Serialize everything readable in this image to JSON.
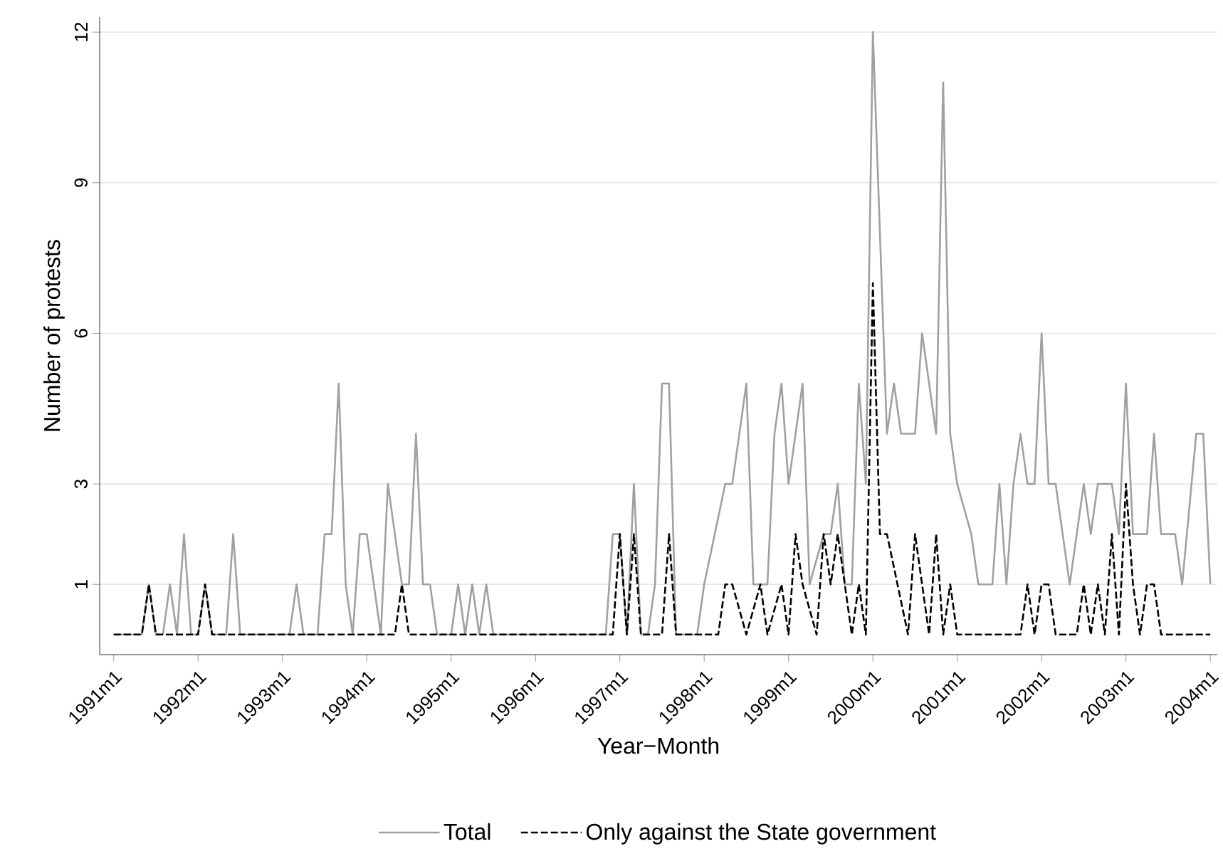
{
  "chart_data": {
    "type": "line",
    "xlabel": "Year−Month",
    "ylabel": "Number of protests",
    "xlim": [
      "1990-11",
      "2004-02"
    ],
    "ylim": [
      -0.4,
      12.3
    ],
    "xticks": [
      {
        "value": "1991-01",
        "label": "1991m1"
      },
      {
        "value": "1992-01",
        "label": "1992m1"
      },
      {
        "value": "1993-01",
        "label": "1993m1"
      },
      {
        "value": "1994-01",
        "label": "1994m1"
      },
      {
        "value": "1995-01",
        "label": "1995m1"
      },
      {
        "value": "1996-01",
        "label": "1996m1"
      },
      {
        "value": "1997-01",
        "label": "1997m1"
      },
      {
        "value": "1998-01",
        "label": "1998m1"
      },
      {
        "value": "1999-01",
        "label": "1999m1"
      },
      {
        "value": "2000-01",
        "label": "2000m1"
      },
      {
        "value": "2001-01",
        "label": "2001m1"
      },
      {
        "value": "2002-01",
        "label": "2002m1"
      },
      {
        "value": "2003-01",
        "label": "2003m1"
      },
      {
        "value": "2004-01",
        "label": "2004m1"
      }
    ],
    "yticks": [
      1,
      3,
      6,
      9,
      12
    ],
    "grid": "y",
    "legend": "bottom",
    "marker": "none",
    "series": [
      {
        "name": "Total",
        "color": "#a0a0a0",
        "line_style": "solid",
        "x": [
          "1991-01",
          "1991-05",
          "1991-06",
          "1991-07",
          "1991-08",
          "1991-09",
          "1991-10",
          "1991-11",
          "1991-12",
          "1992-01",
          "1992-02",
          "1992-03",
          "1992-05",
          "1992-06",
          "1992-07",
          "1993-02",
          "1993-03",
          "1993-04",
          "1993-06",
          "1993-07",
          "1993-08",
          "1993-09",
          "1993-10",
          "1993-11",
          "1993-12",
          "1994-01",
          "1994-03",
          "1994-04",
          "1994-06",
          "1994-07",
          "1994-08",
          "1994-09",
          "1994-10",
          "1994-11",
          "1995-01",
          "1995-02",
          "1995-03",
          "1995-04",
          "1995-05",
          "1995-06",
          "1995-07",
          "1996-11",
          "1996-12",
          "1997-01",
          "1997-02",
          "1997-03",
          "1997-04",
          "1997-05",
          "1997-06",
          "1997-07",
          "1997-08",
          "1997-09",
          "1997-12",
          "1998-01",
          "1998-04",
          "1998-05",
          "1998-07",
          "1998-08",
          "1998-10",
          "1998-11",
          "1998-12",
          "1999-01",
          "1999-03",
          "1999-04",
          "1999-06",
          "1999-07",
          "1999-08",
          "1999-09",
          "1999-10",
          "1999-11",
          "1999-12",
          "2000-01",
          "2000-03",
          "2000-04",
          "2000-05",
          "2000-07",
          "2000-08",
          "2000-10",
          "2000-11",
          "2000-12",
          "2001-01",
          "2001-03",
          "2001-04",
          "2001-06",
          "2001-07",
          "2001-08",
          "2001-09",
          "2001-10",
          "2001-11",
          "2001-12",
          "2002-01",
          "2002-02",
          "2002-03",
          "2002-05",
          "2002-07",
          "2002-08",
          "2002-09",
          "2002-11",
          "2002-12",
          "2003-01",
          "2003-02",
          "2003-04",
          "2003-05",
          "2003-06",
          "2003-08",
          "2003-09",
          "2003-11",
          "2003-12",
          "2004-01"
        ],
        "values": [
          0,
          0,
          1,
          0,
          0,
          1,
          0,
          2,
          0,
          0,
          1,
          0,
          0,
          2,
          0,
          0,
          1,
          0,
          0,
          2,
          2,
          5,
          1,
          0,
          2,
          2,
          0,
          3,
          1,
          1,
          4,
          1,
          1,
          0,
          0,
          1,
          0,
          1,
          0,
          1,
          0,
          0,
          2,
          2,
          0,
          3,
          0,
          0,
          1,
          5,
          5,
          0,
          0,
          1,
          3,
          3,
          5,
          1,
          1,
          4,
          5,
          3,
          5,
          1,
          2,
          2,
          3,
          1,
          1,
          5,
          3,
          12,
          4,
          5,
          4,
          4,
          6,
          4,
          11,
          4,
          3,
          2,
          1,
          1,
          3,
          1,
          3,
          4,
          3,
          3,
          6,
          3,
          3,
          1,
          3,
          2,
          3,
          3,
          2,
          5,
          2,
          2,
          4,
          2,
          2,
          1,
          4,
          4,
          1
        ]
      },
      {
        "name": "Only against the State government",
        "color": "#000000",
        "line_style": "dashed",
        "x": [
          "1991-01",
          "1991-05",
          "1991-06",
          "1991-07",
          "1992-01",
          "1992-02",
          "1992-03",
          "1994-05",
          "1994-06",
          "1994-07",
          "1996-12",
          "1997-01",
          "1997-02",
          "1997-03",
          "1997-04",
          "1997-07",
          "1997-08",
          "1997-09",
          "1998-03",
          "1998-04",
          "1998-05",
          "1998-07",
          "1998-09",
          "1998-10",
          "1998-12",
          "1999-01",
          "1999-02",
          "1999-03",
          "1999-05",
          "1999-06",
          "1999-07",
          "1999-08",
          "1999-10",
          "1999-11",
          "1999-12",
          "2000-01",
          "2000-02",
          "2000-03",
          "2000-06",
          "2000-07",
          "2000-09",
          "2000-10",
          "2000-11",
          "2000-12",
          "2001-01",
          "2001-10",
          "2001-11",
          "2001-12",
          "2002-01",
          "2002-02",
          "2002-03",
          "2002-06",
          "2002-07",
          "2002-08",
          "2002-09",
          "2002-10",
          "2002-11",
          "2002-12",
          "2003-01",
          "2003-02",
          "2003-03",
          "2003-04",
          "2003-05",
          "2003-06",
          "2004-01"
        ],
        "values": [
          0,
          0,
          1,
          0,
          0,
          1,
          0,
          0,
          1,
          0,
          0,
          2,
          0,
          2,
          0,
          0,
          2,
          0,
          0,
          1,
          1,
          0,
          1,
          0,
          1,
          0,
          2,
          1,
          0,
          2,
          1,
          2,
          0,
          1,
          0,
          7,
          2,
          2,
          0,
          2,
          0,
          2,
          0,
          1,
          0,
          0,
          1,
          0,
          1,
          1,
          0,
          0,
          1,
          0,
          1,
          0,
          2,
          0,
          3,
          1,
          0,
          1,
          1,
          0,
          0
        ]
      }
    ]
  }
}
